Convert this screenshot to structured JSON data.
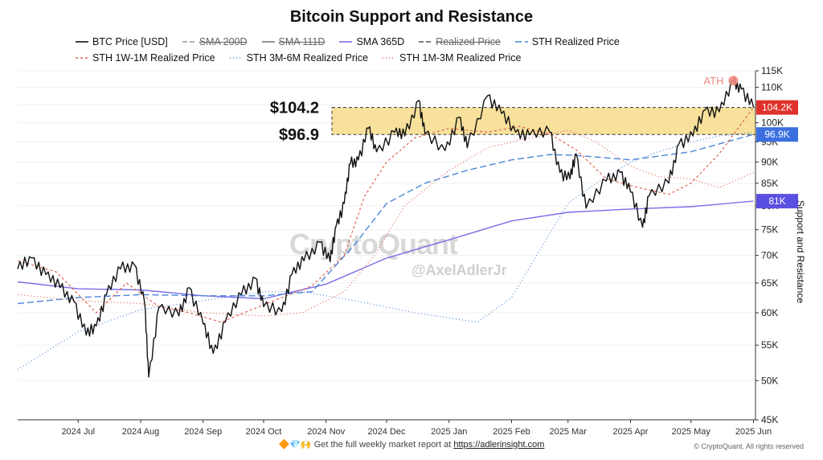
{
  "chart_data": {
    "type": "line",
    "title": "Bitcoin Support and Resistance",
    "ylabel": "Support and Resistance",
    "y_scale": "log",
    "ylim": [
      45000,
      115000
    ],
    "x_range": [
      "2024-06-01",
      "2025-06-02"
    ],
    "y_ticks": [
      {
        "v": 45000,
        "label": "45K"
      },
      {
        "v": 50000,
        "label": "50K"
      },
      {
        "v": 55000,
        "label": "55K"
      },
      {
        "v": 60000,
        "label": "60K"
      },
      {
        "v": 65000,
        "label": "65K"
      },
      {
        "v": 70000,
        "label": "70K"
      },
      {
        "v": 75000,
        "label": "75K"
      },
      {
        "v": 80000,
        "label": "80K"
      },
      {
        "v": 85000,
        "label": "85K"
      },
      {
        "v": 90000,
        "label": "90K"
      },
      {
        "v": 95000,
        "label": "95K"
      },
      {
        "v": 100000,
        "label": "100K"
      },
      {
        "v": 105000,
        "label": "105K"
      },
      {
        "v": 110000,
        "label": "110K"
      },
      {
        "v": 115000,
        "label": "115K"
      }
    ],
    "x_ticks": [
      {
        "d": "2024-07-01",
        "label": "2024 Jul"
      },
      {
        "d": "2024-08-01",
        "label": "2024 Aug"
      },
      {
        "d": "2024-09-01",
        "label": "2024 Sep"
      },
      {
        "d": "2024-10-01",
        "label": "2024 Oct"
      },
      {
        "d": "2024-11-01",
        "label": "2024 Nov"
      },
      {
        "d": "2024-12-01",
        "label": "2024 Dec"
      },
      {
        "d": "2025-01-01",
        "label": "2025 Jan"
      },
      {
        "d": "2025-02-01",
        "label": "2025 Feb"
      },
      {
        "d": "2025-03-01",
        "label": "2025 Mar"
      },
      {
        "d": "2025-04-01",
        "label": "2025 Apr"
      },
      {
        "d": "2025-05-01",
        "label": "2025 May"
      },
      {
        "d": "2025-06-01",
        "label": "2025 Jun"
      }
    ],
    "zone": {
      "low": 96900,
      "high": 104200,
      "label_high": "$104.2",
      "label_low": "$96.9",
      "color": "#f6d77a"
    },
    "right_labels": [
      {
        "v": 104200,
        "text": "104.2K",
        "color": "#e0312b"
      },
      {
        "v": 96900,
        "text": "96.9K",
        "color": "#3b6fe0"
      },
      {
        "v": 81000,
        "text": "81K",
        "color": "#5a4fe0"
      }
    ],
    "annotation": {
      "text": "ATH",
      "d": "2025-05-22",
      "v": 112000,
      "color": "#ef8a80"
    },
    "series": [
      {
        "name": "BTC Price [USD]",
        "color": "#111111",
        "dash": "solid",
        "width": 1.4,
        "points": [
          [
            "2024-06-01",
            67500
          ],
          [
            "2024-06-08",
            69500
          ],
          [
            "2024-06-15",
            66500
          ],
          [
            "2024-06-22",
            64200
          ],
          [
            "2024-06-29",
            61800
          ],
          [
            "2024-07-05",
            56500
          ],
          [
            "2024-07-10",
            57900
          ],
          [
            "2024-07-15",
            63000
          ],
          [
            "2024-07-22",
            67500
          ],
          [
            "2024-07-29",
            68200
          ],
          [
            "2024-08-03",
            61500
          ],
          [
            "2024-08-05",
            50500
          ],
          [
            "2024-08-10",
            60800
          ],
          [
            "2024-08-20",
            59500
          ],
          [
            "2024-08-25",
            64200
          ],
          [
            "2024-09-01",
            58200
          ],
          [
            "2024-09-06",
            53800
          ],
          [
            "2024-09-12",
            58500
          ],
          [
            "2024-09-20",
            63000
          ],
          [
            "2024-09-27",
            65800
          ],
          [
            "2024-10-01",
            61000
          ],
          [
            "2024-10-10",
            60200
          ],
          [
            "2024-10-15",
            66500
          ],
          [
            "2024-10-21",
            69000
          ],
          [
            "2024-10-29",
            72500
          ],
          [
            "2024-11-03",
            68800
          ],
          [
            "2024-11-06",
            75800
          ],
          [
            "2024-11-10",
            80500
          ],
          [
            "2024-11-13",
            89500
          ],
          [
            "2024-11-17",
            90500
          ],
          [
            "2024-11-22",
            98500
          ],
          [
            "2024-11-26",
            92500
          ],
          [
            "2024-12-05",
            97500
          ],
          [
            "2024-12-10",
            96500
          ],
          [
            "2024-12-17",
            106200
          ],
          [
            "2024-12-20",
            97000
          ],
          [
            "2024-12-30",
            92800
          ],
          [
            "2025-01-06",
            101500
          ],
          [
            "2025-01-10",
            93500
          ],
          [
            "2025-01-20",
            107500
          ],
          [
            "2025-01-27",
            102500
          ],
          [
            "2025-02-03",
            97500
          ],
          [
            "2025-02-10",
            96800
          ],
          [
            "2025-02-20",
            97500
          ],
          [
            "2025-02-25",
            87500
          ],
          [
            "2025-03-02",
            86000
          ],
          [
            "2025-03-05",
            92000
          ],
          [
            "2025-03-10",
            79500
          ],
          [
            "2025-03-20",
            85500
          ],
          [
            "2025-03-27",
            87500
          ],
          [
            "2025-04-01",
            83000
          ],
          [
            "2025-04-07",
            75500
          ],
          [
            "2025-04-10",
            82000
          ],
          [
            "2025-04-20",
            85000
          ],
          [
            "2025-04-25",
            94500
          ],
          [
            "2025-05-02",
            96500
          ],
          [
            "2025-05-08",
            103500
          ],
          [
            "2025-05-15",
            103000
          ],
          [
            "2025-05-22",
            111500
          ],
          [
            "2025-05-26",
            109500
          ],
          [
            "2025-06-01",
            104200
          ]
        ]
      },
      {
        "name": "SMA 200D",
        "color": "#9a9a9a",
        "dash": "6,3",
        "width": 1,
        "hidden": true,
        "points": []
      },
      {
        "name": "SMA 111D",
        "color": "#7a7a7a",
        "dash": "solid",
        "width": 1,
        "hidden": true,
        "points": []
      },
      {
        "name": "SMA 365D",
        "color": "#7b6ee8",
        "dash": "solid",
        "width": 1.4,
        "points": [
          [
            "2024-06-01",
            65200
          ],
          [
            "2024-07-01",
            64000
          ],
          [
            "2024-08-01",
            63800
          ],
          [
            "2024-09-01",
            62800
          ],
          [
            "2024-10-01",
            62300
          ],
          [
            "2024-11-01",
            64800
          ],
          [
            "2024-12-01",
            69500
          ],
          [
            "2025-01-01",
            73000
          ],
          [
            "2025-02-01",
            76800
          ],
          [
            "2025-03-01",
            78600
          ],
          [
            "2025-04-01",
            79300
          ],
          [
            "2025-05-01",
            79800
          ],
          [
            "2025-06-01",
            81000
          ]
        ]
      },
      {
        "name": "Realized Price",
        "color": "#555555",
        "dash": "6,3",
        "width": 1,
        "hidden": true,
        "points": []
      },
      {
        "name": "STH Realized Price",
        "color": "#4b86d8",
        "dash": "8,4",
        "width": 1.4,
        "points": [
          [
            "2024-06-01",
            61500
          ],
          [
            "2024-07-01",
            62500
          ],
          [
            "2024-08-01",
            63000
          ],
          [
            "2024-09-01",
            62800
          ],
          [
            "2024-10-01",
            62800
          ],
          [
            "2024-10-25",
            63500
          ],
          [
            "2024-11-15",
            72000
          ],
          [
            "2024-12-01",
            80500
          ],
          [
            "2024-12-20",
            85000
          ],
          [
            "2025-01-10",
            88000
          ],
          [
            "2025-02-01",
            90500
          ],
          [
            "2025-02-20",
            91800
          ],
          [
            "2025-03-05",
            91600
          ],
          [
            "2025-04-01",
            90500
          ],
          [
            "2025-05-01",
            92500
          ],
          [
            "2025-06-01",
            96900
          ]
        ]
      },
      {
        "name": "STH 1W-1M Realized Price",
        "color": "#e0624f",
        "dash": "3,3",
        "width": 1.2,
        "points": [
          [
            "2024-06-01",
            69000
          ],
          [
            "2024-06-20",
            67000
          ],
          [
            "2024-07-10",
            60000
          ],
          [
            "2024-07-25",
            65000
          ],
          [
            "2024-08-10",
            61000
          ],
          [
            "2024-08-25",
            60000
          ],
          [
            "2024-09-10",
            58500
          ],
          [
            "2024-09-25",
            60500
          ],
          [
            "2024-10-10",
            62500
          ],
          [
            "2024-10-25",
            64500
          ],
          [
            "2024-11-10",
            70000
          ],
          [
            "2024-11-20",
            82000
          ],
          [
            "2024-12-01",
            90000
          ],
          [
            "2024-12-15",
            96000
          ],
          [
            "2025-01-01",
            98500
          ],
          [
            "2025-01-20",
            97500
          ],
          [
            "2025-02-05",
            99000
          ],
          [
            "2025-02-20",
            97000
          ],
          [
            "2025-03-05",
            93000
          ],
          [
            "2025-03-20",
            86000
          ],
          [
            "2025-04-05",
            84000
          ],
          [
            "2025-04-20",
            82500
          ],
          [
            "2025-05-01",
            85000
          ],
          [
            "2025-05-15",
            92000
          ],
          [
            "2025-06-01",
            104200
          ]
        ]
      },
      {
        "name": "STH 3M-6M Realized Price",
        "color": "#4b86d8",
        "dash": "1,3",
        "width": 1.2,
        "points": [
          [
            "2024-06-01",
            51500
          ],
          [
            "2024-07-01",
            57000
          ],
          [
            "2024-08-01",
            60500
          ],
          [
            "2024-09-01",
            62000
          ],
          [
            "2024-10-01",
            63500
          ],
          [
            "2024-10-20",
            63500
          ],
          [
            "2024-11-15",
            62000
          ],
          [
            "2024-12-15",
            60000
          ],
          [
            "2025-01-15",
            58500
          ],
          [
            "2025-02-01",
            62500
          ],
          [
            "2025-02-15",
            71000
          ],
          [
            "2025-03-01",
            80500
          ],
          [
            "2025-03-15",
            85000
          ],
          [
            "2025-04-01",
            90000
          ],
          [
            "2025-04-15",
            92500
          ],
          [
            "2025-05-01",
            95000
          ],
          [
            "2025-05-15",
            96500
          ],
          [
            "2025-06-01",
            97500
          ]
        ]
      },
      {
        "name": "STH 1M-3M Realized Price",
        "color": "#e0624f",
        "dash": "1,3",
        "width": 1.2,
        "points": [
          [
            "2024-06-01",
            63000
          ],
          [
            "2024-07-01",
            62000
          ],
          [
            "2024-08-01",
            61500
          ],
          [
            "2024-09-01",
            60000
          ],
          [
            "2024-10-01",
            59500
          ],
          [
            "2024-10-20",
            60000
          ],
          [
            "2024-11-10",
            63500
          ],
          [
            "2024-11-25",
            70000
          ],
          [
            "2024-12-10",
            80000
          ],
          [
            "2025-01-01",
            88000
          ],
          [
            "2025-01-20",
            93500
          ],
          [
            "2025-02-10",
            96000
          ],
          [
            "2025-03-01",
            98000
          ],
          [
            "2025-03-15",
            95000
          ],
          [
            "2025-04-01",
            89000
          ],
          [
            "2025-04-15",
            86500
          ],
          [
            "2025-05-01",
            86000
          ],
          [
            "2025-05-15",
            84000
          ],
          [
            "2025-06-01",
            87500
          ]
        ]
      }
    ]
  },
  "watermark": {
    "brand": "CryptoQuant",
    "handle": "@AxelAdlerJr"
  },
  "footer": {
    "icons": "🔶💎🙌",
    "text": "Get the full weekly market report at",
    "link": "https://adlerinsight.com"
  },
  "copyright": "© CryptoQuant. All rights reserved"
}
